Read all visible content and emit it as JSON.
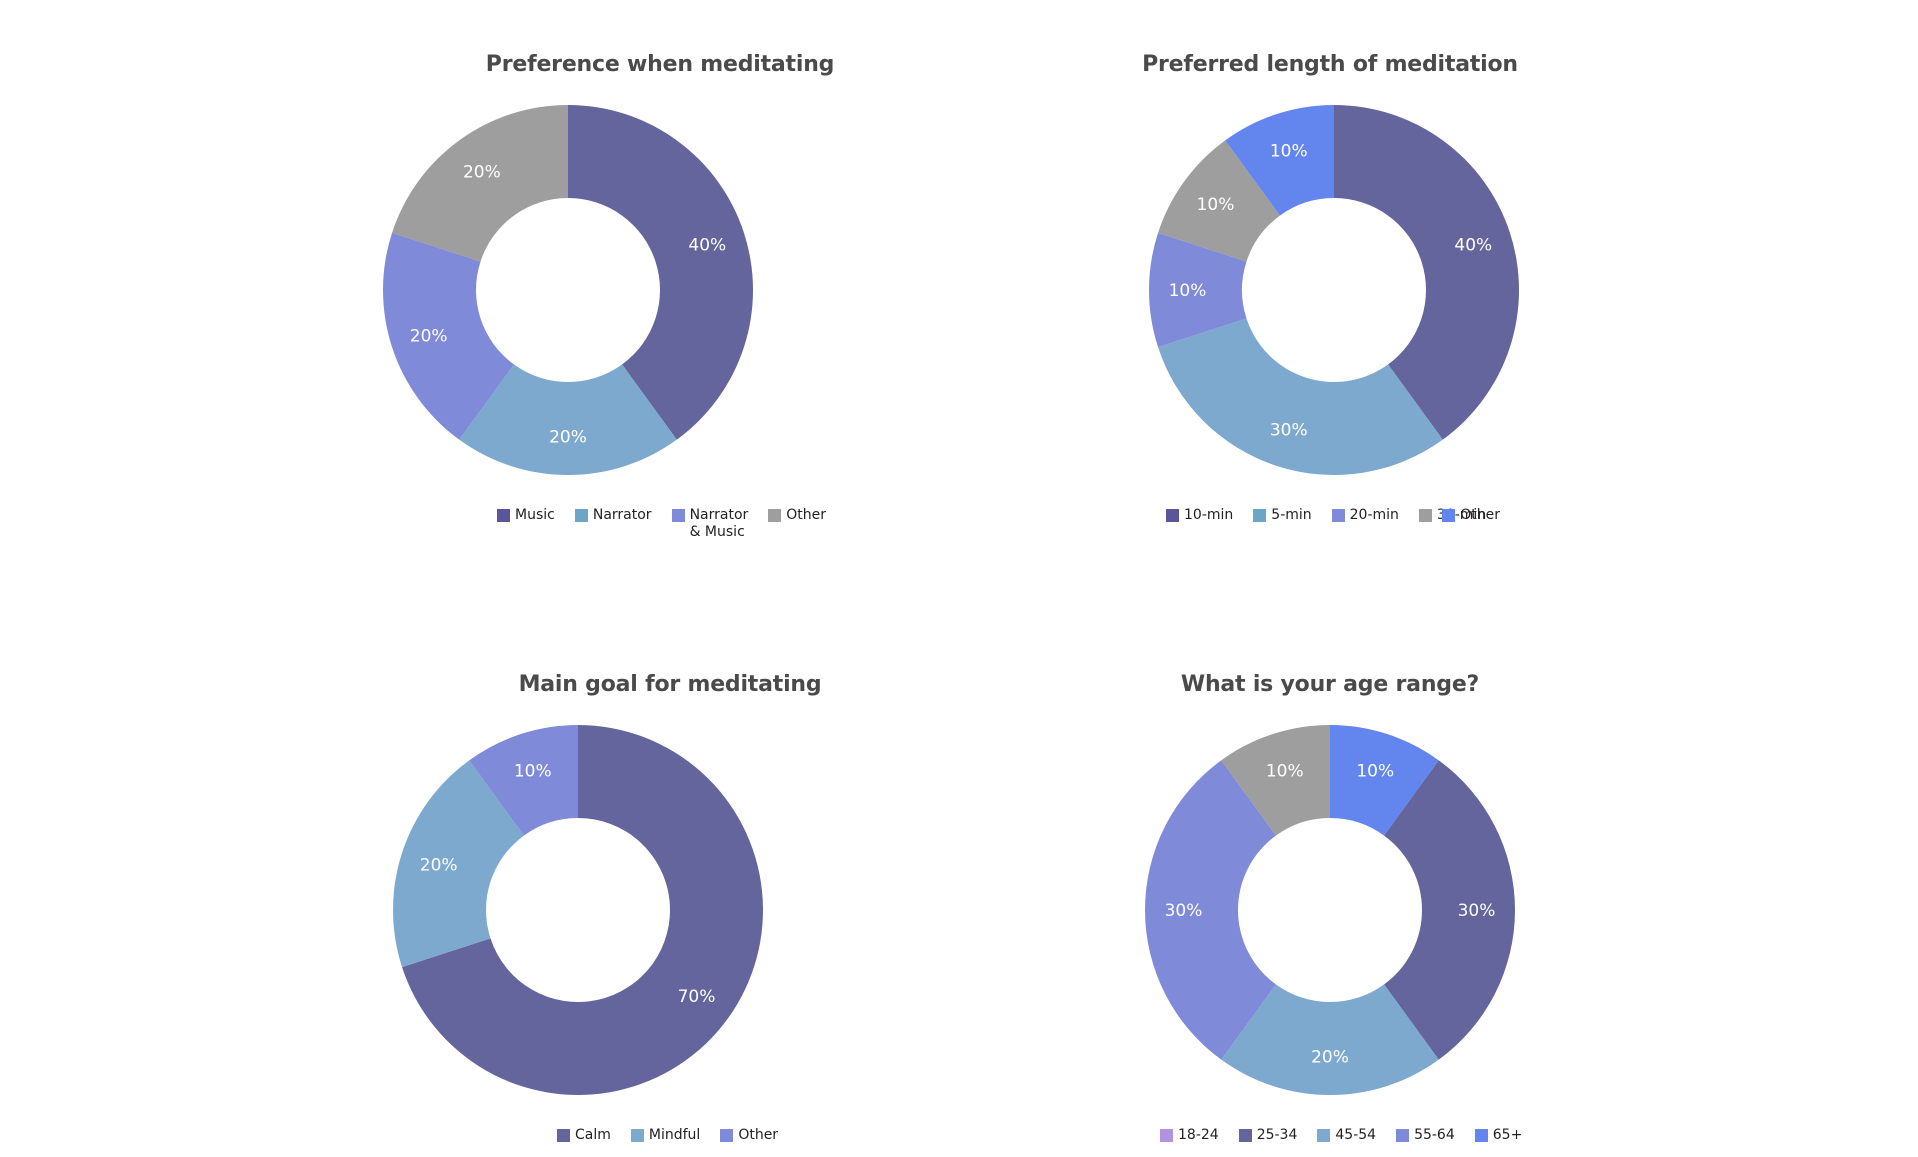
{
  "colors": {
    "dark_purple": "#64659c",
    "light_blue": "#7ea9cf",
    "periwinkle": "#7f8ad9",
    "gray": "#9e9e9e",
    "bright_blue": "#6286ee",
    "lavender": "#b194e0",
    "legend_music": "#5b569a",
    "legend_narrator": "#6da5c6"
  },
  "charts": [
    {
      "title": "Preference when meditating",
      "legend": [
        {
          "label": "Music",
          "color": "#5b569a"
        },
        {
          "label": "Narrator",
          "color": "#6da5c6"
        },
        {
          "label": "Narrator\n& Music",
          "color": "#7f8ad9"
        },
        {
          "label": "Other",
          "color": "#9e9e9e"
        }
      ]
    },
    {
      "title": "Preferred length of meditation",
      "legend": [
        {
          "label": "10-min",
          "color": "#5b569a"
        },
        {
          "label": "5-min",
          "color": "#6da5c6"
        },
        {
          "label": "20-min",
          "color": "#7f8ad9"
        },
        {
          "label": "30-min",
          "color": "#9e9e9e"
        },
        {
          "label": "Other",
          "color": "#6286ee"
        }
      ]
    },
    {
      "title": "Main goal for meditating",
      "legend": [
        {
          "label": "Calm",
          "color": "#64659c"
        },
        {
          "label": "Mindful",
          "color": "#7ea9cf"
        },
        {
          "label": "Other",
          "color": "#7f8ad9"
        }
      ]
    },
    {
      "title": "What is your age range?",
      "legend": [
        {
          "label": "18-24",
          "color": "#b194e0"
        },
        {
          "label": "25-34",
          "color": "#64659c"
        },
        {
          "label": "45-54",
          "color": "#7ea9cf"
        },
        {
          "label": "55-64",
          "color": "#7f8ad9"
        },
        {
          "label": "65+",
          "color": "#6286ee"
        }
      ]
    }
  ],
  "chart_data": [
    {
      "type": "pie",
      "subtype": "donut",
      "title": "Preference when meditating",
      "categories": [
        "Music",
        "Narrator",
        "Narrator & Music",
        "Other"
      ],
      "values": [
        40,
        20,
        20,
        20
      ],
      "labels": [
        "40%",
        "20%",
        "20%",
        "20%"
      ],
      "colors": [
        "#64659c",
        "#7ea9cf",
        "#7f8ad9",
        "#9e9e9e"
      ],
      "legend_position": "bottom"
    },
    {
      "type": "pie",
      "subtype": "donut",
      "title": "Preferred length of meditation",
      "categories": [
        "10-min",
        "5-min",
        "20-min",
        "30-min",
        "Other"
      ],
      "values": [
        40,
        30,
        10,
        10,
        10
      ],
      "labels": [
        "40%",
        "30%",
        "10%",
        "10%",
        "10%"
      ],
      "colors": [
        "#64659c",
        "#7ea9cf",
        "#7f8ad9",
        "#9e9e9e",
        "#6286ee"
      ],
      "legend_position": "bottom"
    },
    {
      "type": "pie",
      "subtype": "donut",
      "title": "Main goal for meditating",
      "categories": [
        "Calm",
        "Mindful",
        "Other"
      ],
      "values": [
        70,
        20,
        10
      ],
      "labels": [
        "70%",
        "20%",
        "10%"
      ],
      "colors": [
        "#64659c",
        "#7ea9cf",
        "#7f8ad9"
      ],
      "legend_position": "bottom"
    },
    {
      "type": "pie",
      "subtype": "donut",
      "title": "What is your age range?",
      "categories": [
        "65+",
        "25-34",
        "45-54",
        "55-64",
        "18-24"
      ],
      "values": [
        10,
        30,
        20,
        30,
        10
      ],
      "labels": [
        "10%",
        "30%",
        "20%",
        "30%",
        "10%"
      ],
      "colors": [
        "#6286ee",
        "#64659c",
        "#7ea9cf",
        "#7f8ad9",
        "#9e9e9e"
      ],
      "legend_position": "bottom"
    }
  ]
}
